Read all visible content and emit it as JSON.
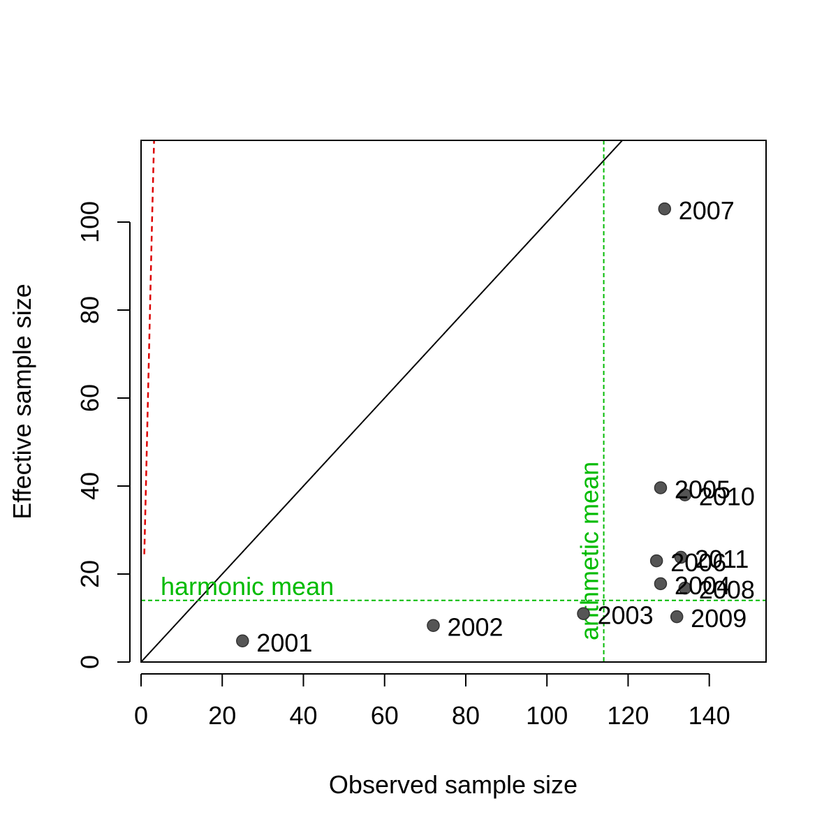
{
  "chart_data": {
    "type": "scatter",
    "title": "",
    "xlabel": "Observed sample size",
    "ylabel": "Effective sample size",
    "xlim": [
      0,
      154
    ],
    "ylim": [
      0,
      118.5
    ],
    "x_ticks": [
      0,
      20,
      40,
      60,
      80,
      100,
      120,
      140
    ],
    "y_ticks": [
      0,
      20,
      40,
      60,
      80,
      100
    ],
    "grid": false,
    "points": [
      {
        "x": 25,
        "y": 4.8,
        "label": "2001"
      },
      {
        "x": 72,
        "y": 8.3,
        "label": "2002"
      },
      {
        "x": 109,
        "y": 11.0,
        "label": "2003"
      },
      {
        "x": 128,
        "y": 17.8,
        "label": "2004"
      },
      {
        "x": 128,
        "y": 39.6,
        "label": "2005"
      },
      {
        "x": 127,
        "y": 23.0,
        "label": "2006"
      },
      {
        "x": 129,
        "y": 103.0,
        "label": "2007"
      },
      {
        "x": 134,
        "y": 16.8,
        "label": "2008"
      },
      {
        "x": 132,
        "y": 10.3,
        "label": "2009"
      },
      {
        "x": 134,
        "y": 38.0,
        "label": "2010"
      },
      {
        "x": 133,
        "y": 23.8,
        "label": "2011"
      }
    ],
    "point_color": "#555555",
    "reference_lines": {
      "one_to_one": {
        "color": "#000000",
        "style": "solid"
      },
      "harmonic_mean": {
        "label": "harmonic mean",
        "y": 14.0,
        "color": "#00bb00",
        "style": "dashed"
      },
      "arithmetic_mean": {
        "label": "arithmetic mean",
        "x": 114.0,
        "color": "#00bb00",
        "style": "dashed"
      },
      "fit_curve": {
        "color": "#dd0000",
        "style": "dashed",
        "points": [
          [
            0.8,
            24.5
          ],
          [
            1.2,
            40
          ],
          [
            1.7,
            60
          ],
          [
            2.2,
            80
          ],
          [
            2.7,
            100
          ],
          [
            3.2,
            118.5
          ]
        ]
      }
    }
  }
}
